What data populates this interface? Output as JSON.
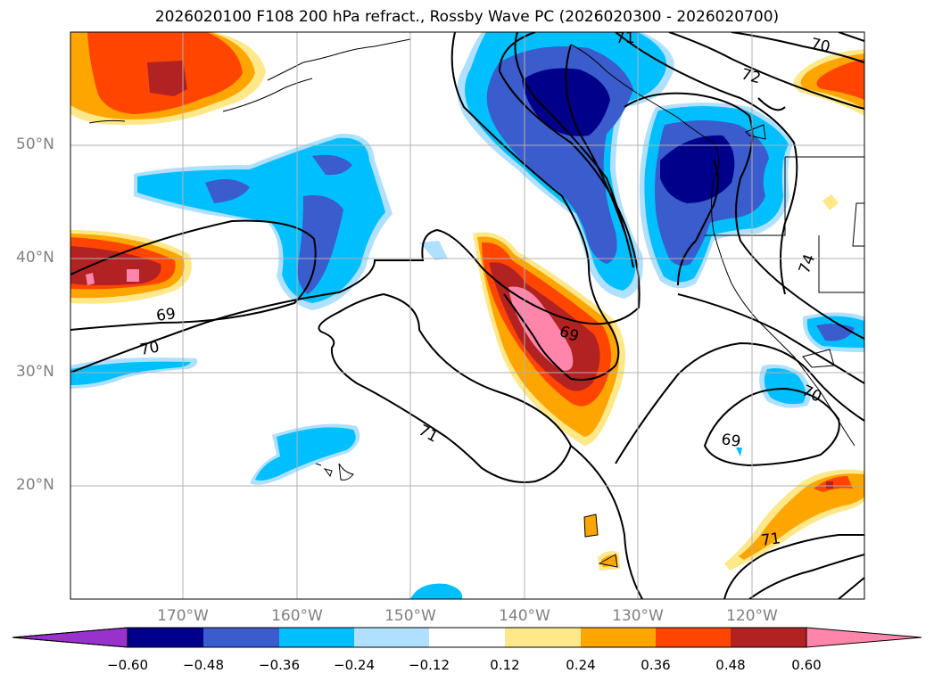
{
  "title": "2026020100 F108 200 hPa refract., Rossby Wave PC (2026020300 - 2026020700)",
  "lat_labels": [
    "50°N",
    "40°N",
    "30°N",
    "20°N"
  ],
  "lon_labels": [
    "170°W",
    "160°W",
    "150°W",
    "140°W",
    "130°W",
    "120°W"
  ],
  "contour_labels": [
    "71",
    "70",
    "72",
    "69",
    "70",
    "71",
    "69",
    "69",
    "70",
    "71",
    "74"
  ],
  "colorbar": {
    "ticks": [
      "−0.60",
      "−0.48",
      "−0.36",
      "−0.24",
      "−0.12",
      "0.12",
      "0.24",
      "0.36",
      "0.48",
      "0.60"
    ],
    "colors": [
      "#9932cc",
      "#00008b",
      "#3a5ccc",
      "#00bfff",
      "#b0e0ff",
      "#ffffff",
      "#ffe88a",
      "#ffa500",
      "#ff4500",
      "#b22222",
      "#ff85aa",
      "#ff85aa"
    ]
  }
}
